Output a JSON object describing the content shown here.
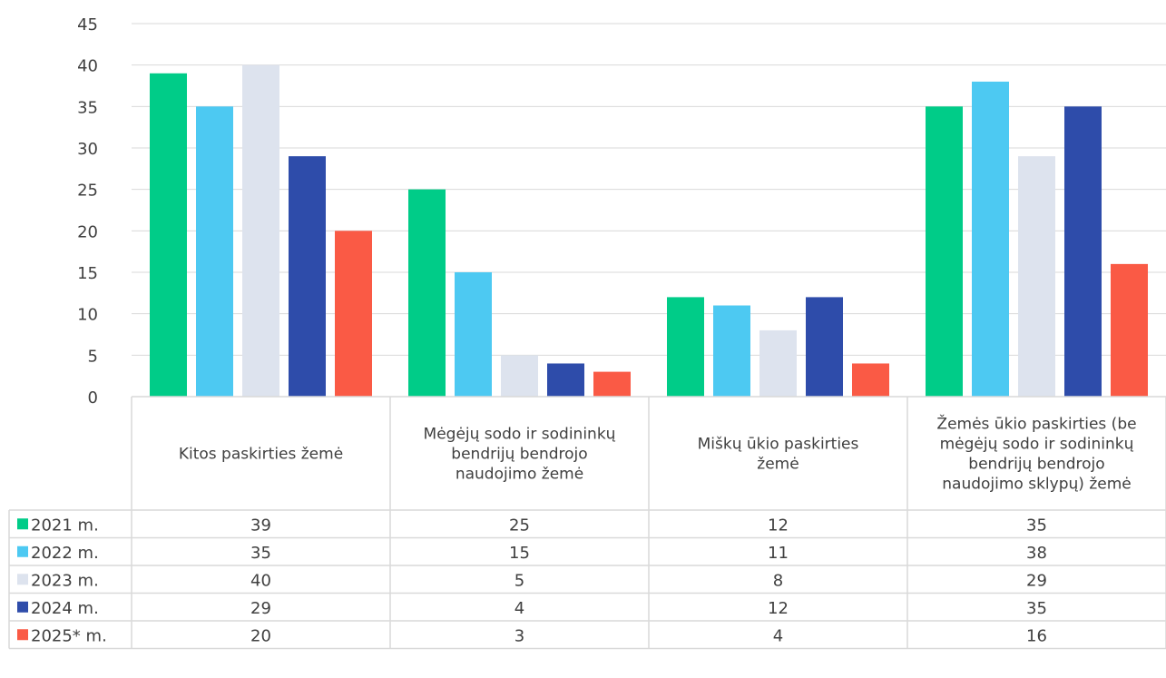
{
  "chart_data": {
    "type": "bar",
    "categories": [
      [
        "Kitos paskirties žemė"
      ],
      [
        "Mėgėjų sodo ir sodininkų",
        "bendrijų bendrojo",
        "naudojimo žemė"
      ],
      [
        "Miškų ūkio paskirties",
        "žemė"
      ],
      [
        "Žemės ūkio paskirties (be",
        "mėgėjų sodo ir sodininkų",
        "bendrijų bendrojo",
        "naudojimo sklypų) žemė"
      ]
    ],
    "series": [
      {
        "name": "2021 m.",
        "color": "#00CC88",
        "values": [
          39,
          25,
          12,
          35
        ]
      },
      {
        "name": "2022 m.",
        "color": "#4DC9F2",
        "values": [
          35,
          15,
          11,
          38
        ]
      },
      {
        "name": "2023 m.",
        "color": "#DDE3EE",
        "values": [
          40,
          5,
          8,
          29
        ]
      },
      {
        "name": "2024 m.",
        "color": "#2E4CAA",
        "values": [
          29,
          4,
          12,
          35
        ]
      },
      {
        "name": "2025* m.",
        "color": "#FA5A45",
        "values": [
          20,
          3,
          4,
          16
        ]
      }
    ],
    "yticks": [
      "45",
      "40",
      "35",
      "30",
      "25",
      "20",
      "15",
      "10",
      "5",
      "0"
    ],
    "ylim": [
      0,
      45
    ],
    "grid": true,
    "legend": "data-table"
  }
}
